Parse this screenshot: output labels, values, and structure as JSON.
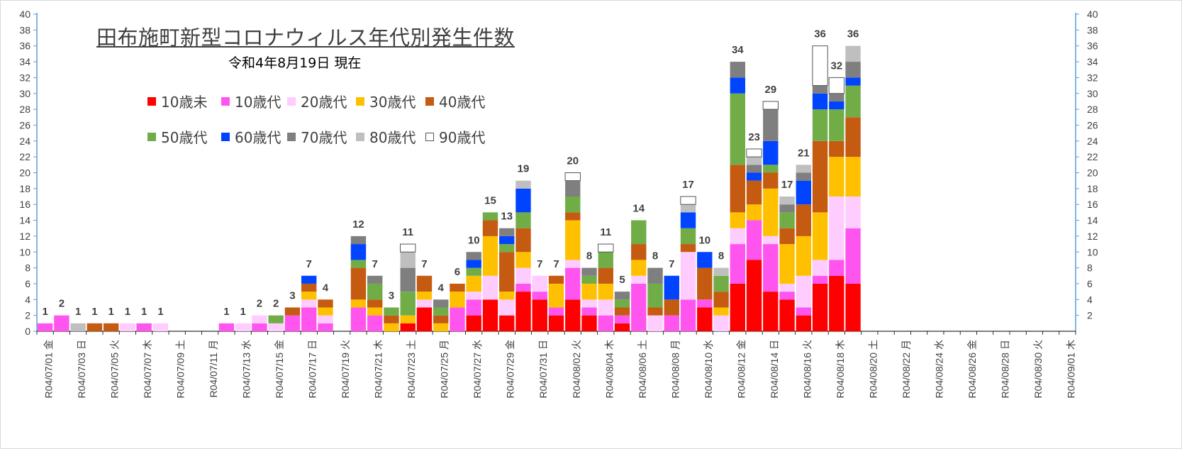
{
  "title": "田布施町新型コロナウィルス年代別発生件数",
  "subtitle": "令和4年8月19日 現在",
  "chart_data": {
    "type": "bar",
    "stacked": true,
    "ylim": [
      0,
      40
    ],
    "y_ticks": [
      0,
      2,
      4,
      6,
      8,
      10,
      12,
      14,
      16,
      18,
      20,
      22,
      24,
      26,
      28,
      30,
      32,
      34,
      36,
      38,
      40
    ],
    "y_ticks_right": [
      2,
      4,
      6,
      8,
      10,
      12,
      14,
      16,
      18,
      20,
      22,
      24,
      26,
      28,
      30,
      32,
      34,
      36,
      38,
      40
    ],
    "grid": false,
    "legend_position": "top-left",
    "series": [
      {
        "name": "10歳未",
        "color": "#ff0000"
      },
      {
        "name": "10歳代",
        "color": "#ff55ee"
      },
      {
        "name": "20歳代",
        "color": "#ffccff"
      },
      {
        "name": "30歳代",
        "color": "#ffc000"
      },
      {
        "name": "40歳代",
        "color": "#c55a11"
      },
      {
        "name": "50歳代",
        "color": "#70ad47"
      },
      {
        "name": "60歳代",
        "color": "#0044ff"
      },
      {
        "name": "70歳代",
        "color": "#7f7f7f"
      },
      {
        "name": "80歳代",
        "color": "#bfbfbf"
      },
      {
        "name": "90歳代",
        "color": "#ffffff"
      }
    ],
    "x_labels": [
      "R04/07/01 金",
      "R04/07/03 日",
      "R04/07/05 火",
      "R04/07/07 木",
      "R04/07/09 土",
      "R04/07/11 月",
      "R04/07/13 水",
      "R04/07/15 金",
      "R04/07/17 日",
      "R04/07/19 火",
      "R04/07/21 木",
      "R04/07/23 土",
      "R04/07/25 月",
      "R04/07/27 水",
      "R04/07/29 金",
      "R04/07/31 日",
      "R04/08/02 火",
      "R04/08/04 木",
      "R04/08/06 土",
      "R04/08/08 月",
      "R04/08/10 水",
      "R04/08/12 金",
      "R04/08/14 日",
      "R04/08/16 火",
      "R04/08/18 木",
      "R04/08/20 土",
      "R04/08/22 月",
      "R04/08/24 水",
      "R04/08/26 金",
      "R04/08/28 日",
      "R04/08/30 火",
      "R04/09/01 木"
    ],
    "days": [
      {
        "date": "R04/07/01",
        "seg": [
          0,
          1,
          0,
          0,
          0,
          0,
          0,
          0,
          0,
          0
        ],
        "total": "1"
      },
      {
        "date": "R04/07/02",
        "seg": [
          0,
          2,
          0,
          0,
          0,
          0,
          0,
          0,
          0,
          0
        ],
        "total": "2"
      },
      {
        "date": "R04/07/03",
        "seg": [
          0,
          0,
          0,
          0,
          0,
          0,
          0,
          0,
          1,
          0
        ],
        "total": "1"
      },
      {
        "date": "R04/07/04",
        "seg": [
          0,
          0,
          0,
          0,
          1,
          0,
          0,
          0,
          0,
          0
        ],
        "total": "1"
      },
      {
        "date": "R04/07/05",
        "seg": [
          0,
          0,
          0,
          0,
          1,
          0,
          0,
          0,
          0,
          0
        ],
        "total": "1"
      },
      {
        "date": "R04/07/06",
        "seg": [
          0,
          0,
          1,
          0,
          0,
          0,
          0,
          0,
          0,
          0
        ],
        "total": "1"
      },
      {
        "date": "R04/07/07",
        "seg": [
          0,
          1,
          0,
          0,
          0,
          0,
          0,
          0,
          0,
          0
        ],
        "total": "1"
      },
      {
        "date": "R04/07/08",
        "seg": [
          0,
          0,
          1,
          0,
          0,
          0,
          0,
          0,
          0,
          0
        ],
        "total": "1"
      },
      {
        "date": "R04/07/09",
        "seg": [
          0,
          0,
          0,
          0,
          0,
          0,
          0,
          0,
          0,
          0
        ],
        "total": ""
      },
      {
        "date": "R04/07/10",
        "seg": [
          0,
          0,
          0,
          0,
          0,
          0,
          0,
          0,
          0,
          0
        ],
        "total": ""
      },
      {
        "date": "R04/07/11",
        "seg": [
          0,
          0,
          0,
          0,
          0,
          0,
          0,
          0,
          0,
          0
        ],
        "total": ""
      },
      {
        "date": "R04/07/12",
        "seg": [
          0,
          1,
          0,
          0,
          0,
          0,
          0,
          0,
          0,
          0
        ],
        "total": "1"
      },
      {
        "date": "R04/07/13",
        "seg": [
          0,
          0,
          1,
          0,
          0,
          0,
          0,
          0,
          0,
          0
        ],
        "total": "1"
      },
      {
        "date": "R04/07/14",
        "seg": [
          0,
          1,
          1,
          0,
          0,
          0,
          0,
          0,
          0,
          0
        ],
        "total": "2"
      },
      {
        "date": "R04/07/15",
        "seg": [
          0,
          0,
          1,
          0,
          0,
          1,
          0,
          0,
          0,
          0
        ],
        "total": "2"
      },
      {
        "date": "R04/07/16",
        "seg": [
          0,
          2,
          0,
          0,
          1,
          0,
          0,
          0,
          0,
          0
        ],
        "total": "3"
      },
      {
        "date": "R04/07/17",
        "seg": [
          0,
          3,
          1,
          1,
          1,
          0,
          1,
          0,
          0,
          0
        ],
        "total": "7"
      },
      {
        "date": "R04/07/18",
        "seg": [
          0,
          1,
          1,
          1,
          1,
          0,
          0,
          0,
          0,
          0
        ],
        "total": "4"
      },
      {
        "date": "R04/07/19",
        "seg": [
          0,
          0,
          0,
          0,
          0,
          0,
          0,
          0,
          0,
          0
        ],
        "total": ""
      },
      {
        "date": "R04/07/20",
        "seg": [
          0,
          3,
          0,
          1,
          4,
          1,
          2,
          1,
          0,
          0
        ],
        "total": "12"
      },
      {
        "date": "R04/07/21",
        "seg": [
          0,
          2,
          0,
          1,
          1,
          2,
          0,
          1,
          0,
          0
        ],
        "total": "7"
      },
      {
        "date": "R04/07/22",
        "seg": [
          0,
          0,
          0,
          1,
          1,
          1,
          0,
          0,
          0,
          0
        ],
        "total": "3"
      },
      {
        "date": "R04/07/23",
        "seg": [
          1,
          0,
          0,
          1,
          0,
          3,
          0,
          3,
          2,
          1
        ],
        "total": "11"
      },
      {
        "date": "R04/07/24",
        "seg": [
          3,
          0,
          1,
          1,
          2,
          0,
          0,
          0,
          0,
          0
        ],
        "total": "7"
      },
      {
        "date": "R04/07/25",
        "seg": [
          0,
          0,
          0,
          1,
          1,
          1,
          0,
          1,
          0,
          0
        ],
        "total": "4"
      },
      {
        "date": "R04/07/26",
        "seg": [
          0,
          3,
          0,
          2,
          1,
          0,
          0,
          0,
          0,
          0
        ],
        "total": "6"
      },
      {
        "date": "R04/07/27",
        "seg": [
          2,
          2,
          1,
          2,
          0,
          1,
          1,
          1,
          0,
          0
        ],
        "total": "10"
      },
      {
        "date": "R04/07/28",
        "seg": [
          4,
          0,
          3,
          5,
          2,
          1,
          0,
          0,
          0,
          0
        ],
        "total": "15"
      },
      {
        "date": "R04/07/29",
        "seg": [
          2,
          0,
          2,
          1,
          5,
          1,
          1,
          1,
          0,
          0
        ],
        "total": "13"
      },
      {
        "date": "R04/07/30",
        "seg": [
          5,
          1,
          2,
          2,
          3,
          2,
          3,
          0,
          1,
          0
        ],
        "total": "19"
      },
      {
        "date": "R04/07/31",
        "seg": [
          4,
          1,
          2,
          0,
          0,
          0,
          0,
          0,
          0,
          0
        ],
        "total": "7"
      },
      {
        "date": "R04/08/01",
        "seg": [
          2,
          1,
          0,
          3,
          1,
          0,
          0,
          0,
          0,
          0
        ],
        "total": "7"
      },
      {
        "date": "R04/08/02",
        "seg": [
          4,
          4,
          1,
          5,
          1,
          2,
          0,
          2,
          0,
          1
        ],
        "total": "20"
      },
      {
        "date": "R04/08/03",
        "seg": [
          2,
          1,
          1,
          2,
          0,
          1,
          0,
          1,
          0,
          0
        ],
        "total": "8"
      },
      {
        "date": "R04/08/04",
        "seg": [
          0,
          2,
          2,
          2,
          2,
          2,
          0,
          0,
          0,
          1
        ],
        "total": "11"
      },
      {
        "date": "R04/08/05",
        "seg": [
          1,
          1,
          0,
          0,
          1,
          1,
          0,
          1,
          0,
          0
        ],
        "total": "5"
      },
      {
        "date": "R04/08/06",
        "seg": [
          0,
          6,
          1,
          2,
          2,
          3,
          0,
          0,
          0,
          0
        ],
        "total": "14"
      },
      {
        "date": "R04/08/07",
        "seg": [
          0,
          0,
          2,
          0,
          1,
          3,
          0,
          2,
          0,
          0
        ],
        "total": "8"
      },
      {
        "date": "R04/08/08",
        "seg": [
          0,
          2,
          0,
          0,
          2,
          0,
          3,
          0,
          0,
          0
        ],
        "total": "7"
      },
      {
        "date": "R04/08/09",
        "seg": [
          0,
          4,
          6,
          0,
          1,
          2,
          2,
          0,
          1,
          1
        ],
        "total": "17"
      },
      {
        "date": "R04/08/10",
        "seg": [
          3,
          1,
          0,
          0,
          4,
          0,
          2,
          0,
          0,
          0
        ],
        "total": "10"
      },
      {
        "date": "R04/08/11",
        "seg": [
          0,
          0,
          2,
          1,
          2,
          2,
          0,
          0,
          1,
          0
        ],
        "total": "8"
      },
      {
        "date": "R04/08/12",
        "seg": [
          6,
          5,
          2,
          2,
          6,
          9,
          2,
          2,
          0,
          0
        ],
        "total": "34"
      },
      {
        "date": "R04/08/13",
        "seg": [
          9,
          5,
          0,
          2,
          3,
          0,
          1,
          1,
          1,
          1
        ],
        "total": "23"
      },
      {
        "date": "R04/08/14",
        "seg": [
          5,
          6,
          1,
          6,
          2,
          1,
          3,
          4,
          0,
          1
        ],
        "total": "29"
      },
      {
        "date": "R04/08/15",
        "seg": [
          4,
          1,
          1,
          5,
          2,
          2,
          0,
          1,
          1,
          0
        ],
        "total": "17"
      },
      {
        "date": "R04/08/16",
        "seg": [
          2,
          1,
          4,
          5,
          4,
          0,
          3,
          1,
          1,
          0
        ],
        "total": "21"
      },
      {
        "date": "R04/08/17",
        "seg": [
          6,
          1,
          2,
          6,
          9,
          4,
          2,
          1,
          0,
          5
        ],
        "total": "36"
      },
      {
        "date": "R04/08/18",
        "seg": [
          7,
          2,
          8,
          5,
          2,
          4,
          1,
          1,
          0,
          2
        ],
        "total": "32"
      },
      {
        "date": "R04/08/19",
        "seg": [
          6,
          7,
          4,
          5,
          5,
          4,
          1,
          2,
          2,
          0
        ],
        "total": "36"
      }
    ]
  }
}
